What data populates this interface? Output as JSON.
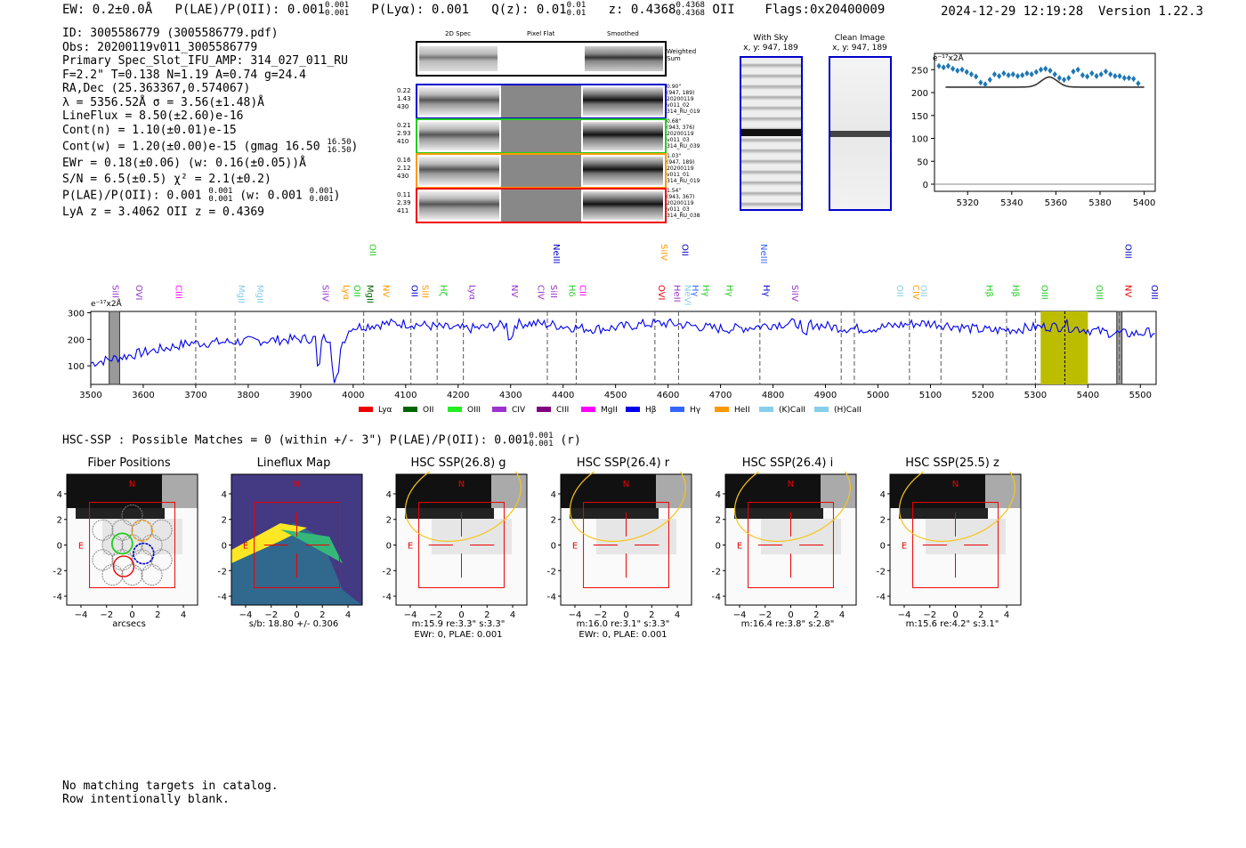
{
  "header": {
    "ew": "EW: 0.2±0.0Å",
    "plae_label": "P(LAE)/P(OII): 0.001",
    "plae_hi": "0.001",
    "plae_lo": "0.001",
    "plya": "P(Lyα): 0.001",
    "qz_label": "Q(z): 0.01",
    "qz_hi": "0.01",
    "qz_lo": "0.01",
    "z_label": "z: 0.4368",
    "z_hi": "0.4368",
    "z_lo": "0.4368",
    "z_line": "OII",
    "flags": "Flags:0x20400009",
    "timestamp": "2024-12-29 12:19:28",
    "version": "Version 1.22.3"
  },
  "info": {
    "lines": [
      "ID: 3005586779 (3005586779.pdf)",
      "Obs: 20200119v011_3005586779",
      "Primary Spec_Slot_IFU_AMP: 314_027_011_RU",
      "F=2.2\"  T=0.138  N=1.19  A=0.74  g=24.4",
      "RA,Dec (25.363367,0.574067)",
      "λ = 5356.52Å   σ = 3.56(±1.48)Å",
      "LineFlux = 8.50(±2.60)e-16",
      "Cont(n) = 1.10(±0.01)e-15",
      "Cont(w) = 1.20(±0.00)e-15 (gmag 16.50",
      "EWr = 0.18(±0.06) (w: 0.16(±0.05))Å",
      "S/N = 6.5(±0.5)  χ² = 2.1(±0.2)",
      "P(LAE)/P(OII): 0.001",
      "LyA z = 3.4062  OII z = 0.4369"
    ],
    "gmag_hi": "16.50",
    "gmag_lo": "16.50",
    "plae_hi": "0.001",
    "plae_lo": "0.001",
    "plae_w": "(w: 0.001",
    "plae_w_hi": "0.001",
    "plae_w_lo": "0.001"
  },
  "spec2d": {
    "col_titles": [
      "2D Spec",
      "Pixel Flat",
      "Smoothed"
    ],
    "weighted_label": "Weighted Sum",
    "rows": [
      {
        "left": [
          "0.22",
          "1.43",
          "430"
        ],
        "right": [
          "0.90\"",
          "(947, 189)",
          "20200119",
          "v011_02",
          "314_RU_019"
        ],
        "color": "#0000cc"
      },
      {
        "left": [
          "0.21",
          "2.93",
          "410"
        ],
        "right": [
          "0.68\"",
          "(943, 376)",
          "20200119",
          "v011_03",
          "314_RU_039"
        ],
        "color": "#22cc22"
      },
      {
        "left": [
          "0.16",
          "2.12",
          "430"
        ],
        "right": [
          "1.03\"",
          "(947, 189)",
          "20200119",
          "v011_01",
          "314_RU_019"
        ],
        "color": "#ff9900"
      },
      {
        "left": [
          "0.11",
          "2.39",
          "411"
        ],
        "right": [
          "1.54\"",
          "(943, 367)",
          "20200119",
          "v011_03",
          "314_RU_038"
        ],
        "color": "#ee0000"
      }
    ]
  },
  "sky": {
    "with_sky_title": "With Sky",
    "with_sky_coords": "x, y: 947, 189",
    "clean_title": "Clean Image",
    "clean_coords": "x, y: 947, 189"
  },
  "zoom_plot": {
    "unit": "e⁻¹⁷x2Å",
    "yticks": [
      "250",
      "200",
      "150",
      "100",
      "50",
      "0"
    ],
    "xticks": [
      "5320",
      "5340",
      "5360",
      "5380",
      "5400"
    ]
  },
  "full_spectrum": {
    "unit": "e⁻¹⁷x2Å",
    "yticks": [
      "300",
      "200",
      "100"
    ],
    "xticks": [
      "3500",
      "3600",
      "3700",
      "3800",
      "3900",
      "4000",
      "4100",
      "4200",
      "4300",
      "4400",
      "4500",
      "4600",
      "4700",
      "4800",
      "4900",
      "5000",
      "5100",
      "5200",
      "5300",
      "5400",
      "5500"
    ],
    "line_labels": [
      {
        "t": "SiII",
        "w": 3535,
        "c": "#9933cc",
        "row": 0
      },
      {
        "t": "OVI",
        "w": 3580,
        "c": "#9933cc",
        "row": 0
      },
      {
        "t": "CIII",
        "w": 3655,
        "c": "#ff00ff",
        "row": 0
      },
      {
        "t": "MgII",
        "w": 3775,
        "c": "#87ceeb",
        "row": 0
      },
      {
        "t": "MgII",
        "w": 3810,
        "c": "#87ceeb",
        "row": 0
      },
      {
        "t": "SiIV",
        "w": 3935,
        "c": "#9933cc",
        "row": 0
      },
      {
        "t": "Lyα",
        "w": 3975,
        "c": "#ff9900",
        "row": 0
      },
      {
        "t": "OII",
        "w": 3995,
        "c": "#22cc22",
        "row": 0
      },
      {
        "t": "MgII",
        "w": 4020,
        "c": "#006600",
        "row": 0
      },
      {
        "t": "OII",
        "w": 4025,
        "c": "#22cc22",
        "row": 2
      },
      {
        "t": "NV",
        "w": 4050,
        "c": "#ff9900",
        "row": 0
      },
      {
        "t": "OII",
        "w": 4105,
        "c": "#0000cc",
        "row": 0
      },
      {
        "t": "SiII",
        "w": 4125,
        "c": "#ff9900",
        "row": 0
      },
      {
        "t": "Hζ",
        "w": 4160,
        "c": "#22cc22",
        "row": 0
      },
      {
        "t": "Lyα",
        "w": 4215,
        "c": "#9933cc",
        "row": 0
      },
      {
        "t": "NV",
        "w": 4295,
        "c": "#9933cc",
        "row": 0
      },
      {
        "t": "CIV",
        "w": 4345,
        "c": "#9933cc",
        "row": 0
      },
      {
        "t": "SiII",
        "w": 4370,
        "c": "#9933cc",
        "row": 0
      },
      {
        "t": "NeIII",
        "w": 4375,
        "c": "#0000cc",
        "row": 2
      },
      {
        "t": "Hδ",
        "w": 4405,
        "c": "#22cc22",
        "row": 0
      },
      {
        "t": "CII",
        "w": 4425,
        "c": "#ff00ff",
        "row": 0
      },
      {
        "t": "OVI",
        "w": 4575,
        "c": "#ee0000",
        "row": 0
      },
      {
        "t": "SiIV",
        "w": 4580,
        "c": "#ff9900",
        "row": 2
      },
      {
        "t": "HeII",
        "w": 4605,
        "c": "#9933cc",
        "row": 0
      },
      {
        "t": "OII",
        "w": 4620,
        "c": "#0000cc",
        "row": 2
      },
      {
        "t": "NeVI",
        "w": 4625,
        "c": "#87ceeb",
        "row": 0
      },
      {
        "t": "Hγ",
        "w": 4640,
        "c": "#3366ff",
        "row": 0
      },
      {
        "t": "Hγ",
        "w": 4660,
        "c": "#22cc22",
        "row": 0
      },
      {
        "t": "Hγ",
        "w": 4705,
        "c": "#22cc22",
        "row": 0
      },
      {
        "t": "NeIII",
        "w": 4770,
        "c": "#3366ff",
        "row": 2
      },
      {
        "t": "Hγ",
        "w": 4775,
        "c": "#0000cc",
        "row": 0
      },
      {
        "t": "SiIV",
        "w": 4830,
        "c": "#9933cc",
        "row": 0
      },
      {
        "t": "OII",
        "w": 5030,
        "c": "#87ceeb",
        "row": 0
      },
      {
        "t": "CIV",
        "w": 5060,
        "c": "#ff9900",
        "row": 0
      },
      {
        "t": "OII",
        "w": 5075,
        "c": "#87ceeb",
        "row": 0
      },
      {
        "t": "Hβ",
        "w": 5200,
        "c": "#22cc22",
        "row": 0
      },
      {
        "t": "Hβ",
        "w": 5250,
        "c": "#22cc22",
        "row": 0
      },
      {
        "t": "OIII",
        "w": 5305,
        "c": "#22cc22",
        "row": 0
      },
      {
        "t": "OIII",
        "w": 5410,
        "c": "#22cc22",
        "row": 0
      },
      {
        "t": "NV",
        "w": 5465,
        "c": "#ee0000",
        "row": 0
      },
      {
        "t": "OIII",
        "w": 5465,
        "c": "#0000cc",
        "row": 2
      },
      {
        "t": "OIII",
        "w": 5515,
        "c": "#0000cc",
        "row": 0
      }
    ],
    "legend": [
      {
        "t": "Lyα",
        "c": "#ee0000"
      },
      {
        "t": "OII",
        "c": "#006600"
      },
      {
        "t": "OIII",
        "c": "#22ee22"
      },
      {
        "t": "CIV",
        "c": "#9933cc"
      },
      {
        "t": "CIII",
        "c": "#800080"
      },
      {
        "t": "MgII",
        "c": "#ff00ff"
      },
      {
        "t": "Hβ",
        "c": "#0000ee"
      },
      {
        "t": "Hγ",
        "c": "#3366ff"
      },
      {
        "t": "HeII",
        "c": "#ff9900"
      },
      {
        "t": "(K)CaII",
        "c": "#87ceeb"
      },
      {
        "t": "(H)CaII",
        "c": "#87ceeb"
      }
    ]
  },
  "hsc": {
    "summary": "HSC-SSP : Possible Matches = 0 (within +/- 3\")  P(LAE)/P(OII): 0.001",
    "summary_hi": "0.001",
    "summary_lo": "0.001",
    "summary_band": "(r)",
    "panels": [
      {
        "title": "Fiber Positions",
        "below": [
          "arcsecs"
        ]
      },
      {
        "title": "Lineflux Map",
        "below": [
          "s/b: 18.80 +/- 0.306"
        ]
      },
      {
        "title": "HSC SSP(26.8) g",
        "below": [
          "m:15.9  re:3.3\"  s:3.3\"",
          "EWr: 0, PLAE: 0.001"
        ]
      },
      {
        "title": "HSC SSP(26.4) r",
        "below": [
          "m:16.0  re:3.1\"  s:3.3\"",
          "EWr: 0, PLAE: 0.001"
        ]
      },
      {
        "title": "HSC SSP(26.4) i",
        "below": [
          "m:16.4  re:3.8\"  s:2.8\""
        ]
      },
      {
        "title": "HSC SSP(25.5) z",
        "below": [
          "m:15.6  re:4.2\"  s:3.1\""
        ]
      }
    ],
    "yticks": [
      "4",
      "2",
      "0",
      "−2",
      "−4"
    ],
    "xticks": [
      "−4",
      "−2",
      "0",
      "2",
      "4"
    ],
    "north": "N",
    "east": "E"
  },
  "footer": {
    "line1": "No matching targets in catalog.",
    "line2": "Row intentionally blank."
  }
}
